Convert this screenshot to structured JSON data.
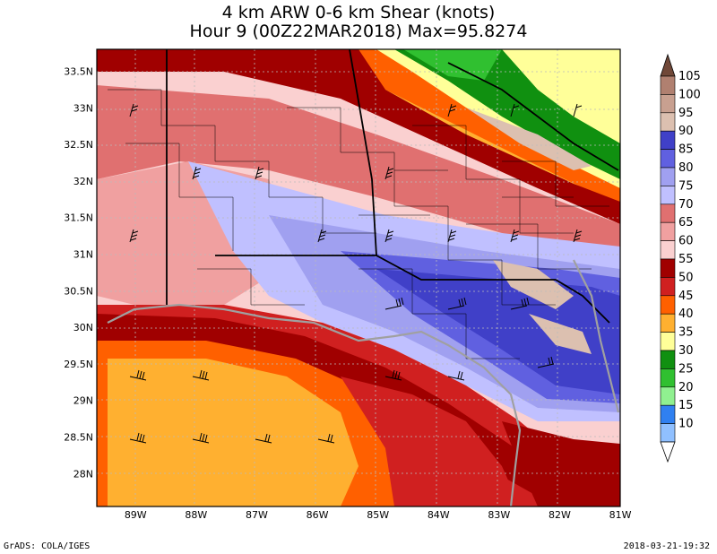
{
  "title": {
    "line1": "4 km ARW 0-6 km Shear (knots)",
    "line2": "Hour 9 (00Z22MAR2018) Max=95.8274"
  },
  "axes": {
    "lat_labels": [
      "33.5N",
      "33N",
      "32.5N",
      "32N",
      "31.5N",
      "31N",
      "30.5N",
      "30N",
      "29.5N",
      "29N",
      "28.5N",
      "28N"
    ],
    "lat_values": [
      33.5,
      33,
      32.5,
      32,
      31.5,
      31,
      30.5,
      30,
      29.5,
      29,
      28.5,
      28
    ],
    "lon_labels": [
      "89W",
      "88W",
      "87W",
      "86W",
      "85W",
      "84W",
      "83W",
      "82W",
      "81W"
    ],
    "lon_values": [
      -89,
      -88,
      -87,
      -86,
      -85,
      -84,
      -83,
      -82,
      -81
    ]
  },
  "colorbar": {
    "levels": [
      "105",
      "100",
      "95",
      "90",
      "85",
      "80",
      "75",
      "70",
      "65",
      "60",
      "55",
      "50",
      "45",
      "40",
      "35",
      "30",
      "25",
      "20",
      "15",
      "10"
    ],
    "colors": [
      "#b08070",
      "#c8a090",
      "#dcc0b0",
      "#4040c8",
      "#6060e0",
      "#a0a0f0",
      "#c0c0ff",
      "#e07070",
      "#f0a0a0",
      "#fad0d0",
      "#a00000",
      "#d02020",
      "#ff6000",
      "#ffb030",
      "#ffff99",
      "#109010",
      "#30c030",
      "#90f090",
      "#3080f0",
      "#90c0ff"
    ],
    "tip_top_color": "#704838",
    "tip_bottom_color": "#ffffff"
  },
  "footer": {
    "credit": "GrADS: COLA/IGES",
    "timestamp": "2018-03-21-19:32"
  }
}
